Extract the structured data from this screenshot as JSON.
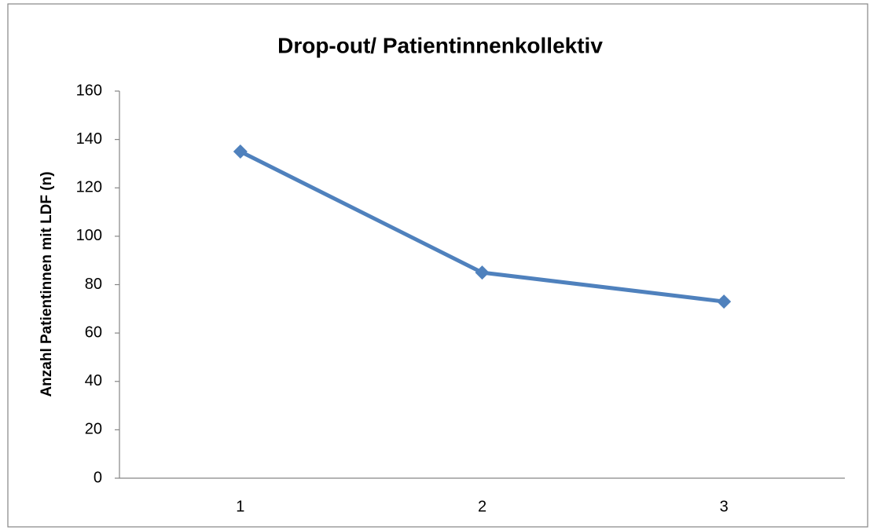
{
  "chart_data": {
    "type": "line",
    "title": "Drop-out/ Patientinnenkollektiv",
    "y_label": "Anzahl Patientinnen mit LDF (n)",
    "categories": [
      "1",
      "2",
      "3"
    ],
    "values": [
      135,
      85,
      73
    ],
    "color": "#4f81bd",
    "ylim": [
      0,
      160
    ],
    "yticks": [
      0,
      20,
      40,
      60,
      80,
      100,
      120,
      140,
      160
    ],
    "grid": false
  }
}
